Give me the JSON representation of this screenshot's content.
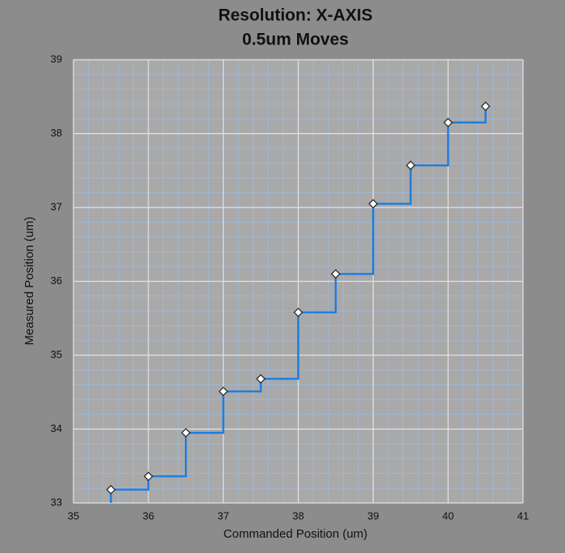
{
  "chart_data": {
    "type": "step",
    "title": [
      "Resolution: X-AXIS",
      "0.5um Moves"
    ],
    "x_label": "Commanded Position (um)",
    "y_label": "Measured Position (um)",
    "x": [
      35.5,
      36,
      36.5,
      37,
      37.5,
      38,
      38.5,
      39,
      39.5,
      40,
      40.5
    ],
    "values": [
      33.18,
      33.36,
      33.95,
      34.51,
      34.68,
      35.58,
      36.1,
      37.05,
      37.57,
      38.15,
      38.37
    ],
    "color": "#1f7ee0",
    "xlim": [
      35,
      41
    ],
    "xticks": [
      35,
      36,
      37,
      38,
      39,
      40,
      41
    ],
    "ylim": [
      33,
      39
    ],
    "yticks": [
      33,
      34,
      35,
      36,
      37,
      38,
      39
    ],
    "grid": true
  }
}
